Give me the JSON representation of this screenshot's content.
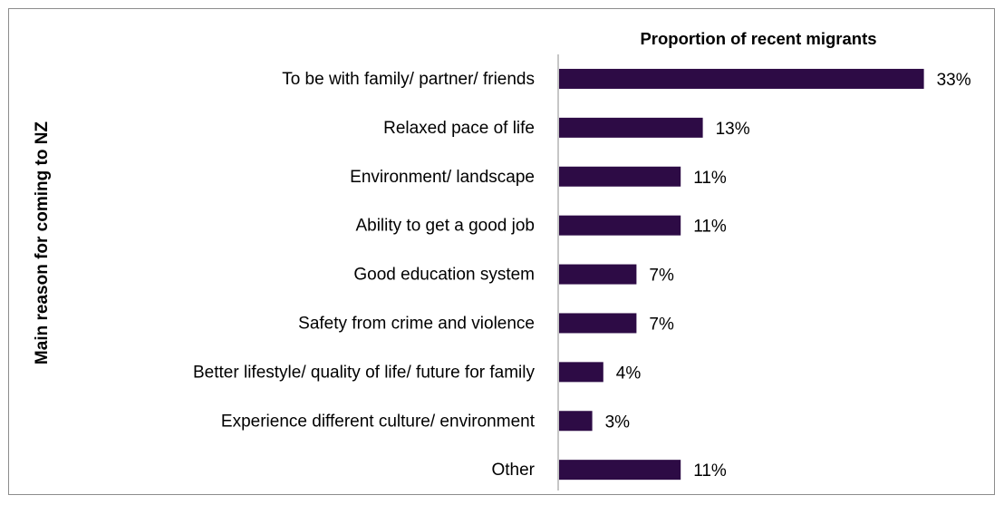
{
  "chart_data": {
    "type": "bar",
    "orientation": "horizontal",
    "title": "Proportion of recent migrants",
    "ylabel": "Main reason for coming to NZ",
    "xlabel": "",
    "categories": [
      "To be with family/ partner/ friends",
      "Relaxed pace of life",
      "Environment/ landscape",
      "Ability to get a good job",
      "Good education system",
      "Safety from crime and violence",
      "Better lifestyle/ quality of life/ future for family",
      "Experience different culture/ environment",
      "Other"
    ],
    "values": [
      33,
      13,
      11,
      11,
      7,
      7,
      4,
      3,
      11
    ],
    "value_labels": [
      "33%",
      "13%",
      "11%",
      "11%",
      "7%",
      "7%",
      "4%",
      "3%",
      "11%"
    ],
    "unit": "%",
    "xlim": [
      0,
      35
    ],
    "grid": false,
    "legend": "none",
    "bar_color": "#2d0b45"
  }
}
